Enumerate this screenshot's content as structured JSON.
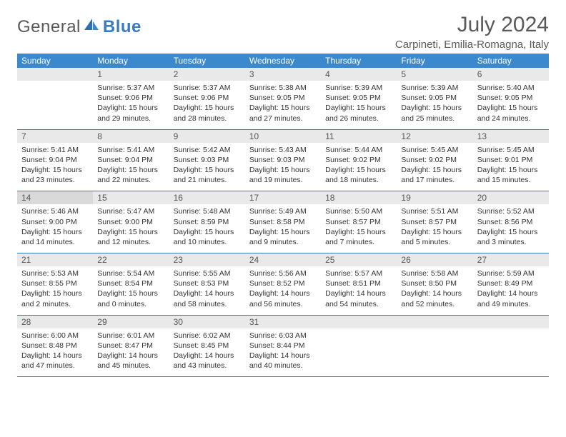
{
  "brand": {
    "part1": "General",
    "part2": "Blue"
  },
  "title": "July 2024",
  "location": "Carpineti, Emilia-Romagna, Italy",
  "colors": {
    "header_bg": "#3a89cf",
    "accent": "#3a7cc4",
    "daynum_bg": "#e9e9e9",
    "text": "#333333",
    "muted": "#5a5a5a"
  },
  "dayNames": [
    "Sunday",
    "Monday",
    "Tuesday",
    "Wednesday",
    "Thursday",
    "Friday",
    "Saturday"
  ],
  "weeks": [
    [
      null,
      {
        "n": "1",
        "sr": "Sunrise: 5:37 AM",
        "ss": "Sunset: 9:06 PM",
        "d1": "Daylight: 15 hours",
        "d2": "and 29 minutes."
      },
      {
        "n": "2",
        "sr": "Sunrise: 5:37 AM",
        "ss": "Sunset: 9:06 PM",
        "d1": "Daylight: 15 hours",
        "d2": "and 28 minutes."
      },
      {
        "n": "3",
        "sr": "Sunrise: 5:38 AM",
        "ss": "Sunset: 9:05 PM",
        "d1": "Daylight: 15 hours",
        "d2": "and 27 minutes."
      },
      {
        "n": "4",
        "sr": "Sunrise: 5:39 AM",
        "ss": "Sunset: 9:05 PM",
        "d1": "Daylight: 15 hours",
        "d2": "and 26 minutes."
      },
      {
        "n": "5",
        "sr": "Sunrise: 5:39 AM",
        "ss": "Sunset: 9:05 PM",
        "d1": "Daylight: 15 hours",
        "d2": "and 25 minutes."
      },
      {
        "n": "6",
        "sr": "Sunrise: 5:40 AM",
        "ss": "Sunset: 9:05 PM",
        "d1": "Daylight: 15 hours",
        "d2": "and 24 minutes."
      }
    ],
    [
      {
        "n": "7",
        "sr": "Sunrise: 5:41 AM",
        "ss": "Sunset: 9:04 PM",
        "d1": "Daylight: 15 hours",
        "d2": "and 23 minutes."
      },
      {
        "n": "8",
        "sr": "Sunrise: 5:41 AM",
        "ss": "Sunset: 9:04 PM",
        "d1": "Daylight: 15 hours",
        "d2": "and 22 minutes."
      },
      {
        "n": "9",
        "sr": "Sunrise: 5:42 AM",
        "ss": "Sunset: 9:03 PM",
        "d1": "Daylight: 15 hours",
        "d2": "and 21 minutes."
      },
      {
        "n": "10",
        "sr": "Sunrise: 5:43 AM",
        "ss": "Sunset: 9:03 PM",
        "d1": "Daylight: 15 hours",
        "d2": "and 19 minutes."
      },
      {
        "n": "11",
        "sr": "Sunrise: 5:44 AM",
        "ss": "Sunset: 9:02 PM",
        "d1": "Daylight: 15 hours",
        "d2": "and 18 minutes."
      },
      {
        "n": "12",
        "sr": "Sunrise: 5:45 AM",
        "ss": "Sunset: 9:02 PM",
        "d1": "Daylight: 15 hours",
        "d2": "and 17 minutes."
      },
      {
        "n": "13",
        "sr": "Sunrise: 5:45 AM",
        "ss": "Sunset: 9:01 PM",
        "d1": "Daylight: 15 hours",
        "d2": "and 15 minutes."
      }
    ],
    [
      {
        "n": "14",
        "today": true,
        "sr": "Sunrise: 5:46 AM",
        "ss": "Sunset: 9:00 PM",
        "d1": "Daylight: 15 hours",
        "d2": "and 14 minutes."
      },
      {
        "n": "15",
        "sr": "Sunrise: 5:47 AM",
        "ss": "Sunset: 9:00 PM",
        "d1": "Daylight: 15 hours",
        "d2": "and 12 minutes."
      },
      {
        "n": "16",
        "sr": "Sunrise: 5:48 AM",
        "ss": "Sunset: 8:59 PM",
        "d1": "Daylight: 15 hours",
        "d2": "and 10 minutes."
      },
      {
        "n": "17",
        "sr": "Sunrise: 5:49 AM",
        "ss": "Sunset: 8:58 PM",
        "d1": "Daylight: 15 hours",
        "d2": "and 9 minutes."
      },
      {
        "n": "18",
        "sr": "Sunrise: 5:50 AM",
        "ss": "Sunset: 8:57 PM",
        "d1": "Daylight: 15 hours",
        "d2": "and 7 minutes."
      },
      {
        "n": "19",
        "sr": "Sunrise: 5:51 AM",
        "ss": "Sunset: 8:57 PM",
        "d1": "Daylight: 15 hours",
        "d2": "and 5 minutes."
      },
      {
        "n": "20",
        "sr": "Sunrise: 5:52 AM",
        "ss": "Sunset: 8:56 PM",
        "d1": "Daylight: 15 hours",
        "d2": "and 3 minutes."
      }
    ],
    [
      {
        "n": "21",
        "sr": "Sunrise: 5:53 AM",
        "ss": "Sunset: 8:55 PM",
        "d1": "Daylight: 15 hours",
        "d2": "and 2 minutes."
      },
      {
        "n": "22",
        "sr": "Sunrise: 5:54 AM",
        "ss": "Sunset: 8:54 PM",
        "d1": "Daylight: 15 hours",
        "d2": "and 0 minutes."
      },
      {
        "n": "23",
        "sr": "Sunrise: 5:55 AM",
        "ss": "Sunset: 8:53 PM",
        "d1": "Daylight: 14 hours",
        "d2": "and 58 minutes."
      },
      {
        "n": "24",
        "sr": "Sunrise: 5:56 AM",
        "ss": "Sunset: 8:52 PM",
        "d1": "Daylight: 14 hours",
        "d2": "and 56 minutes."
      },
      {
        "n": "25",
        "sr": "Sunrise: 5:57 AM",
        "ss": "Sunset: 8:51 PM",
        "d1": "Daylight: 14 hours",
        "d2": "and 54 minutes."
      },
      {
        "n": "26",
        "sr": "Sunrise: 5:58 AM",
        "ss": "Sunset: 8:50 PM",
        "d1": "Daylight: 14 hours",
        "d2": "and 52 minutes."
      },
      {
        "n": "27",
        "sr": "Sunrise: 5:59 AM",
        "ss": "Sunset: 8:49 PM",
        "d1": "Daylight: 14 hours",
        "d2": "and 49 minutes."
      }
    ],
    [
      {
        "n": "28",
        "sr": "Sunrise: 6:00 AM",
        "ss": "Sunset: 8:48 PM",
        "d1": "Daylight: 14 hours",
        "d2": "and 47 minutes."
      },
      {
        "n": "29",
        "sr": "Sunrise: 6:01 AM",
        "ss": "Sunset: 8:47 PM",
        "d1": "Daylight: 14 hours",
        "d2": "and 45 minutes."
      },
      {
        "n": "30",
        "sr": "Sunrise: 6:02 AM",
        "ss": "Sunset: 8:45 PM",
        "d1": "Daylight: 14 hours",
        "d2": "and 43 minutes."
      },
      {
        "n": "31",
        "sr": "Sunrise: 6:03 AM",
        "ss": "Sunset: 8:44 PM",
        "d1": "Daylight: 14 hours",
        "d2": "and 40 minutes."
      },
      null,
      null,
      null
    ]
  ]
}
